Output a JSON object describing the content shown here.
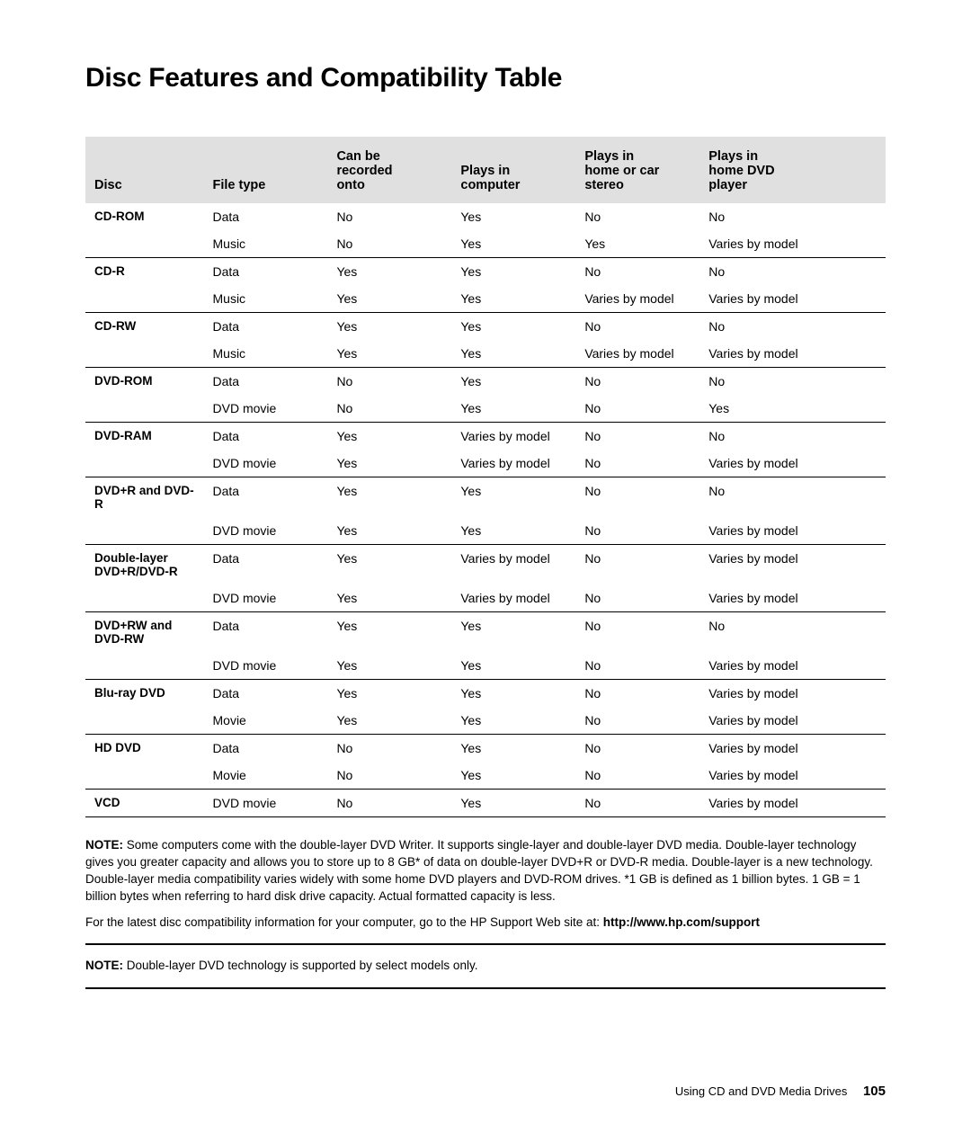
{
  "title": "Disc Features and Compatibility Table",
  "columns": [
    "Disc",
    "File type",
    "Can be\nrecorded\nonto",
    "Plays in\ncomputer",
    "Plays in\nhome or car\nstereo",
    "Plays in\nhome DVD\nplayer"
  ],
  "groups": [
    {
      "disc": "CD-ROM",
      "rows": [
        [
          "Data",
          "No",
          "Yes",
          "No",
          "No"
        ],
        [
          "Music",
          "No",
          "Yes",
          "Yes",
          "Varies by model"
        ]
      ]
    },
    {
      "disc": "CD-R",
      "rows": [
        [
          "Data",
          "Yes",
          "Yes",
          "No",
          "No"
        ],
        [
          "Music",
          "Yes",
          "Yes",
          "Varies by model",
          "Varies by model"
        ]
      ]
    },
    {
      "disc": "CD-RW",
      "rows": [
        [
          "Data",
          "Yes",
          "Yes",
          "No",
          "No"
        ],
        [
          "Music",
          "Yes",
          "Yes",
          "Varies by model",
          "Varies by model"
        ]
      ]
    },
    {
      "disc": "DVD-ROM",
      "rows": [
        [
          "Data",
          "No",
          "Yes",
          "No",
          "No"
        ],
        [
          "DVD movie",
          "No",
          "Yes",
          "No",
          "Yes"
        ]
      ]
    },
    {
      "disc": "DVD-RAM",
      "rows": [
        [
          "Data",
          "Yes",
          "Varies by model",
          "No",
          "No"
        ],
        [
          "DVD movie",
          "Yes",
          "Varies by model",
          "No",
          "Varies by model"
        ]
      ]
    },
    {
      "disc": "DVD+R and DVD-R",
      "rows": [
        [
          "Data",
          "Yes",
          "Yes",
          "No",
          "No"
        ],
        [
          "DVD movie",
          "Yes",
          "Yes",
          "No",
          "Varies by model"
        ]
      ]
    },
    {
      "disc": "Double-layer DVD+R/DVD-R",
      "rows": [
        [
          "Data",
          "Yes",
          "Varies by model",
          "No",
          "Varies by model"
        ],
        [
          "DVD movie",
          "Yes",
          "Varies by model",
          "No",
          "Varies by model"
        ]
      ]
    },
    {
      "disc": "DVD+RW and DVD-RW",
      "rows": [
        [
          "Data",
          "Yes",
          "Yes",
          "No",
          "No"
        ],
        [
          "DVD movie",
          "Yes",
          "Yes",
          "No",
          "Varies by model"
        ]
      ]
    },
    {
      "disc": "Blu-ray DVD",
      "rows": [
        [
          "Data",
          "Yes",
          "Yes",
          "No",
          "Varies by model"
        ],
        [
          "Movie",
          "Yes",
          "Yes",
          "No",
          "Varies by model"
        ]
      ]
    },
    {
      "disc": "HD DVD",
      "rows": [
        [
          "Data",
          "No",
          "Yes",
          "No",
          "Varies by model"
        ],
        [
          "Movie",
          "No",
          "Yes",
          "No",
          "Varies by model"
        ]
      ]
    },
    {
      "disc": "VCD",
      "rows": [
        [
          "DVD movie",
          "No",
          "Yes",
          "No",
          "Varies by model"
        ]
      ]
    }
  ],
  "note1_label": "NOTE:",
  "note1_text": " Some computers come with the double-layer DVD Writer. It supports single-layer and double-layer DVD media. Double-layer technology gives you greater capacity and allows you to store up to 8 GB* of data on double-layer DVD+R or DVD-R media. Double-layer is a new technology. Double-layer media compatibility varies widely with some home DVD players and DVD-ROM drives. *1 GB is defined as 1 billion bytes. 1 GB = 1 billion bytes when referring to hard disk drive capacity. Actual formatted capacity is less.",
  "note2_prefix": "For the latest disc compatibility information for your computer, go to the HP Support Web site at: ",
  "note2_url": "http://www.hp.com/support",
  "note3_label": "NOTE:",
  "note3_text": " Double-layer DVD technology is supported by select models only.",
  "footer_text": "Using CD and DVD Media Drives",
  "page_number": "105"
}
